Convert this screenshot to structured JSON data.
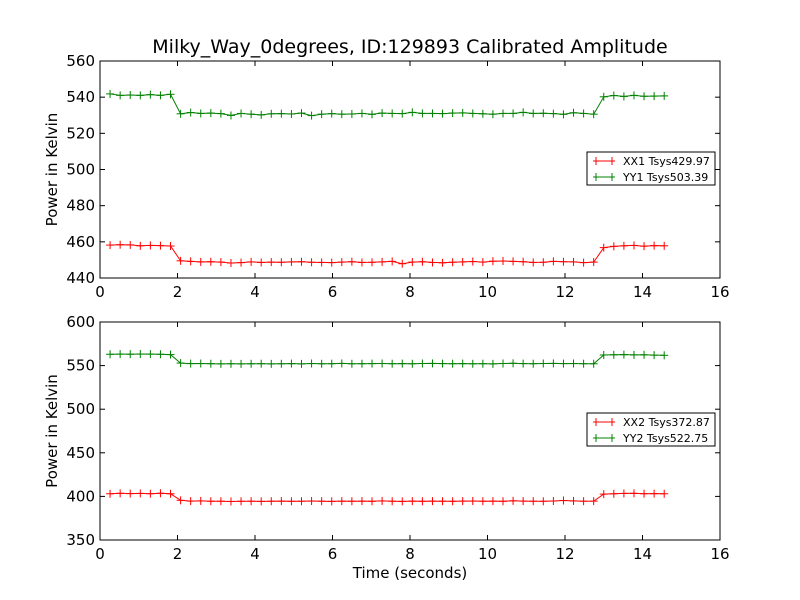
{
  "chart_data": [
    {
      "type": "line",
      "title": "Milky_Way_0degrees, ID:129893 Calibrated Amplitude",
      "xlabel": "",
      "ylabel": "Power in Kelvin",
      "xlim": [
        0,
        16
      ],
      "ylim": [
        440,
        560
      ],
      "xticks": [
        0,
        2,
        4,
        6,
        8,
        10,
        12,
        14,
        16
      ],
      "yticks": [
        440,
        460,
        480,
        500,
        520,
        540,
        560
      ],
      "grid": false,
      "legend_position": "right",
      "x": [
        0.26,
        0.52,
        0.78,
        1.04,
        1.3,
        1.56,
        1.82,
        2.08,
        2.34,
        2.6,
        2.86,
        3.12,
        3.38,
        3.64,
        3.9,
        4.16,
        4.42,
        4.68,
        4.94,
        5.2,
        5.46,
        5.72,
        5.98,
        6.24,
        6.5,
        6.76,
        7.02,
        7.28,
        7.54,
        7.8,
        8.06,
        8.32,
        8.58,
        8.84,
        9.1,
        9.36,
        9.62,
        9.88,
        10.14,
        10.4,
        10.66,
        10.92,
        11.18,
        11.44,
        11.7,
        11.96,
        12.22,
        12.48,
        12.74,
        13.0,
        13.26,
        13.52,
        13.78,
        14.04,
        14.3,
        14.56
      ],
      "series": [
        {
          "name": "XX1 Tsys429.97",
          "color": "#ff0000",
          "values": [
            458.2,
            458.4,
            458.3,
            457.8,
            458.0,
            457.9,
            457.7,
            449.5,
            449.2,
            448.9,
            449.0,
            448.8,
            448.3,
            448.5,
            448.9,
            448.6,
            448.8,
            448.7,
            448.9,
            449.0,
            448.7,
            448.6,
            448.5,
            448.8,
            449.0,
            448.6,
            448.7,
            448.9,
            449.2,
            447.9,
            448.8,
            449.0,
            448.6,
            448.4,
            448.7,
            448.9,
            449.1,
            448.8,
            449.3,
            449.4,
            449.2,
            449.0,
            448.6,
            448.7,
            449.2,
            449.0,
            448.9,
            448.5,
            448.8,
            456.8,
            457.5,
            457.8,
            458.0,
            457.6,
            457.9,
            457.8
          ]
        },
        {
          "name": "YY1 Tsys503.39",
          "color": "#008000",
          "values": [
            541.8,
            541.0,
            541.2,
            541.0,
            541.4,
            541.0,
            541.6,
            530.8,
            531.5,
            531.0,
            531.2,
            530.9,
            529.9,
            531.0,
            530.6,
            530.2,
            530.8,
            530.9,
            530.7,
            531.2,
            529.8,
            530.6,
            530.9,
            530.6,
            530.7,
            531.0,
            530.5,
            531.2,
            531.0,
            530.9,
            531.6,
            531.0,
            531.0,
            530.9,
            531.2,
            531.3,
            531.0,
            530.8,
            530.6,
            531.0,
            531.0,
            531.6,
            531.0,
            531.1,
            530.9,
            530.5,
            531.4,
            531.0,
            530.6,
            540.2,
            540.9,
            540.4,
            541.0,
            540.5,
            540.6,
            540.7
          ]
        }
      ]
    },
    {
      "type": "line",
      "title": "",
      "xlabel": "Time (seconds)",
      "ylabel": "Power in Kelvin",
      "xlim": [
        0,
        16
      ],
      "ylim": [
        350,
        600
      ],
      "xticks": [
        0,
        2,
        4,
        6,
        8,
        10,
        12,
        14,
        16
      ],
      "yticks": [
        350,
        400,
        450,
        500,
        550,
        600
      ],
      "grid": false,
      "legend_position": "right",
      "x": [
        0.26,
        0.52,
        0.78,
        1.04,
        1.3,
        1.56,
        1.82,
        2.08,
        2.34,
        2.6,
        2.86,
        3.12,
        3.38,
        3.64,
        3.9,
        4.16,
        4.42,
        4.68,
        4.94,
        5.2,
        5.46,
        5.72,
        5.98,
        6.24,
        6.5,
        6.76,
        7.02,
        7.28,
        7.54,
        7.8,
        8.06,
        8.32,
        8.58,
        8.84,
        9.1,
        9.36,
        9.62,
        9.88,
        10.14,
        10.4,
        10.66,
        10.92,
        11.18,
        11.44,
        11.7,
        11.96,
        12.22,
        12.48,
        12.74,
        13.0,
        13.26,
        13.52,
        13.78,
        14.04,
        14.3,
        14.56
      ],
      "series": [
        {
          "name": "XX2 Tsys372.87",
          "color": "#ff0000",
          "values": [
            403.0,
            403.5,
            403.2,
            403.4,
            403.1,
            403.6,
            403.0,
            395.5,
            394.6,
            394.8,
            394.5,
            394.5,
            394.2,
            394.4,
            394.5,
            394.3,
            394.5,
            394.6,
            394.4,
            394.5,
            394.7,
            394.5,
            394.3,
            394.6,
            394.5,
            394.6,
            394.4,
            394.8,
            394.5,
            394.3,
            394.6,
            394.4,
            394.6,
            394.5,
            394.4,
            394.6,
            394.7,
            394.5,
            394.6,
            394.4,
            394.9,
            394.6,
            394.5,
            394.4,
            394.7,
            395.3,
            394.8,
            394.5,
            394.6,
            402.6,
            403.0,
            403.4,
            403.5,
            403.1,
            403.2,
            403.0
          ]
        },
        {
          "name": "YY2 Tsys522.75",
          "color": "#008000",
          "values": [
            563.0,
            563.2,
            563.1,
            563.3,
            563.2,
            563.0,
            562.6,
            552.9,
            552.3,
            552.4,
            552.2,
            552.0,
            552.1,
            552.0,
            552.1,
            552.2,
            552.0,
            552.1,
            552.3,
            552.0,
            552.4,
            552.1,
            552.2,
            552.5,
            552.1,
            552.2,
            552.3,
            552.4,
            552.2,
            552.3,
            552.1,
            552.4,
            552.5,
            552.3,
            552.2,
            552.3,
            552.1,
            552.2,
            552.0,
            552.4,
            552.6,
            552.3,
            552.2,
            552.4,
            552.5,
            552.3,
            552.4,
            552.2,
            552.1,
            562.2,
            562.4,
            562.6,
            562.3,
            562.4,
            562.0,
            561.8
          ]
        }
      ]
    }
  ]
}
